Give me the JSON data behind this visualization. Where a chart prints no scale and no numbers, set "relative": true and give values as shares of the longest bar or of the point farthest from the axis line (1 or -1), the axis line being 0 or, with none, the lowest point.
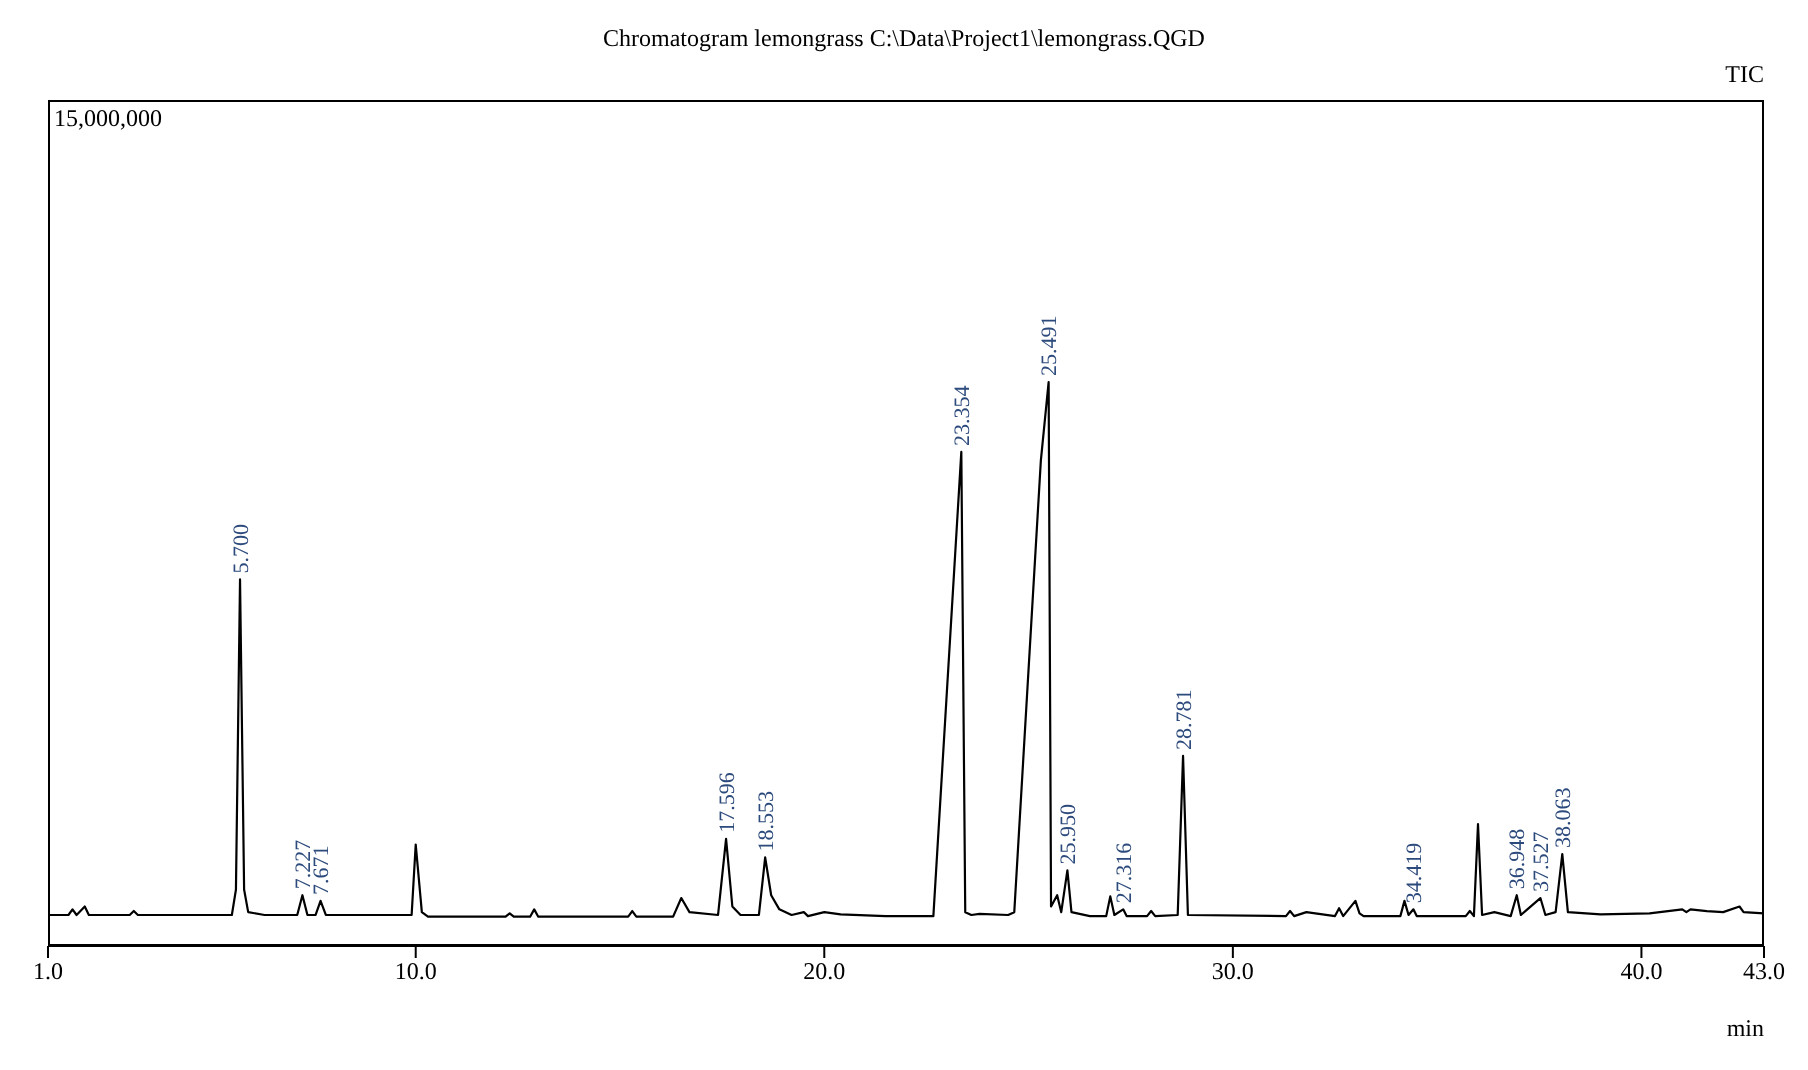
{
  "chart_data": {
    "type": "line",
    "title": "Chromatogram lemongrass C:\\Data\\Project1\\lemongrass.QGD",
    "xlabel": "min",
    "relative": true,
    "grid": false,
    "marker": "none",
    "line_style": "solid",
    "xlim": [
      1,
      43
    ],
    "xticks": [
      {
        "value": 1,
        "label": "1.0"
      },
      {
        "value": 10,
        "label": "10.0"
      },
      {
        "value": 20,
        "label": "20.0"
      },
      {
        "value": 30,
        "label": "30.0"
      },
      {
        "value": 40,
        "label": "40.0"
      },
      {
        "value": 43,
        "label": "43.0"
      }
    ],
    "x": [
      1.0,
      1.5,
      1.6,
      1.7,
      1.9,
      2.0,
      3.0,
      3.1,
      3.2,
      5.5,
      5.6,
      5.7,
      5.8,
      5.9,
      6.3,
      7.1,
      7.227,
      7.35,
      7.55,
      7.671,
      7.8,
      9.9,
      10.0,
      10.15,
      10.3,
      12.2,
      12.3,
      12.4,
      12.8,
      12.9,
      13.0,
      15.2,
      15.3,
      15.4,
      16.3,
      16.5,
      16.7,
      17.4,
      17.596,
      17.75,
      17.95,
      18.4,
      18.553,
      18.7,
      18.9,
      19.2,
      19.5,
      19.6,
      20.0,
      20.4,
      21.5,
      22.67,
      23.354,
      23.45,
      23.6,
      23.8,
      24.5,
      24.65,
      25.3,
      25.491,
      25.55,
      25.7,
      25.8,
      25.95,
      26.05,
      26.5,
      26.9,
      27.0,
      27.1,
      27.316,
      27.4,
      27.9,
      28.0,
      28.1,
      28.65,
      28.781,
      28.9,
      31.3,
      31.4,
      31.5,
      31.8,
      32.5,
      32.6,
      32.7,
      33.0,
      33.1,
      33.2,
      34.1,
      34.2,
      34.3,
      34.419,
      34.5,
      35.7,
      35.8,
      35.9,
      36.0,
      36.1,
      36.4,
      36.8,
      36.948,
      37.05,
      37.527,
      37.65,
      37.9,
      38.063,
      38.2,
      39.0,
      40.2,
      41.0,
      41.1,
      41.2,
      41.6,
      42.0,
      42.4,
      42.5,
      43.0
    ],
    "series": [
      {
        "color": "#000000",
        "values": [
          0.055,
          0.055,
          0.065,
          0.055,
          0.07,
          0.055,
          0.055,
          0.062,
          0.055,
          0.055,
          0.1,
          0.65,
          0.1,
          0.06,
          0.055,
          0.055,
          0.09,
          0.055,
          0.055,
          0.08,
          0.055,
          0.055,
          0.18,
          0.06,
          0.052,
          0.052,
          0.058,
          0.052,
          0.052,
          0.065,
          0.052,
          0.052,
          0.062,
          0.052,
          0.052,
          0.085,
          0.06,
          0.055,
          0.19,
          0.07,
          0.055,
          0.055,
          0.157,
          0.09,
          0.065,
          0.055,
          0.06,
          0.053,
          0.06,
          0.056,
          0.053,
          0.053,
          0.876,
          0.06,
          0.055,
          0.057,
          0.055,
          0.06,
          0.86,
          1.0,
          0.07,
          0.09,
          0.06,
          0.134,
          0.06,
          0.053,
          0.053,
          0.088,
          0.055,
          0.065,
          0.053,
          0.053,
          0.062,
          0.053,
          0.055,
          0.337,
          0.055,
          0.053,
          0.062,
          0.053,
          0.06,
          0.053,
          0.067,
          0.053,
          0.08,
          0.058,
          0.053,
          0.053,
          0.08,
          0.055,
          0.065,
          0.053,
          0.053,
          0.062,
          0.053,
          0.216,
          0.055,
          0.06,
          0.053,
          0.09,
          0.055,
          0.085,
          0.055,
          0.06,
          0.163,
          0.06,
          0.056,
          0.058,
          0.065,
          0.06,
          0.065,
          0.062,
          0.06,
          0.07,
          0.06,
          0.058
        ]
      }
    ],
    "annotations": [
      "15,000,000",
      "TIC",
      {
        "text": "5.700",
        "x": 5.7,
        "y": 0.65
      },
      {
        "text": "7.227",
        "x": 7.227,
        "y": 0.09
      },
      {
        "text": "7.671",
        "x": 7.671,
        "y": 0.08
      },
      {
        "text": "17.596",
        "x": 17.596,
        "y": 0.19
      },
      {
        "text": "18.553",
        "x": 18.553,
        "y": 0.157
      },
      {
        "text": "23.354",
        "x": 23.354,
        "y": 0.876
      },
      {
        "text": "25.491",
        "x": 25.491,
        "y": 1.0
      },
      {
        "text": "25.950",
        "x": 25.95,
        "y": 0.134
      },
      {
        "text": "27.316",
        "x": 27.316,
        "y": 0.065
      },
      {
        "text": "28.781",
        "x": 28.781,
        "y": 0.337
      },
      {
        "text": "34.419",
        "x": 34.419,
        "y": 0.065
      },
      {
        "text": "36.948",
        "x": 36.948,
        "y": 0.09
      },
      {
        "text": "37.527",
        "x": 37.527,
        "y": 0.085
      },
      {
        "text": "38.063",
        "x": 38.063,
        "y": 0.163
      }
    ]
  }
}
